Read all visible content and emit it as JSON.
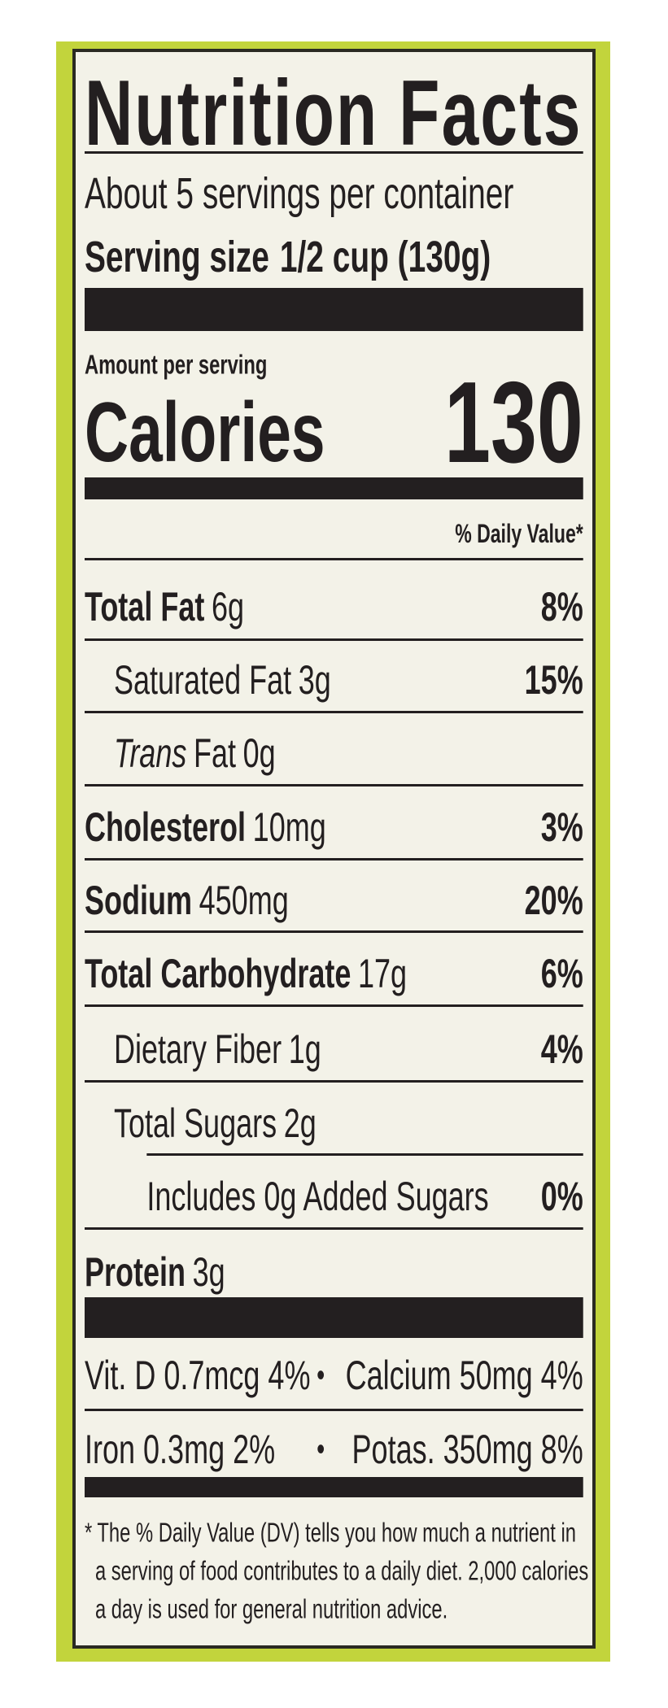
{
  "header": {
    "title": "Nutrition Facts",
    "servings": "About 5 servings per container",
    "serving_size_label": "Serving size",
    "serving_size": "1/2 cup (130g)"
  },
  "calories": {
    "amount_label": "Amount per serving",
    "label": "Calories",
    "value": "130"
  },
  "daily_value_header": "% Daily Value*",
  "nutrients": [
    {
      "name": "Total Fat",
      "amount": "6g",
      "dv": "8%",
      "bold": true,
      "indent": 0
    },
    {
      "name": "Saturated Fat",
      "amount": "3g",
      "dv": "15%",
      "bold": false,
      "indent": 1
    },
    {
      "name_italic": "Trans",
      "name": "Fat",
      "amount": "0g",
      "bold": false,
      "indent": 1
    },
    {
      "name": "Cholesterol",
      "amount": "10mg",
      "dv": "3%",
      "bold": true,
      "indent": 0
    },
    {
      "name": "Sodium",
      "amount": "450mg",
      "dv": "20%",
      "bold": true,
      "indent": 0
    },
    {
      "name": "Total Carbohydrate",
      "amount": "17g",
      "dv": "6%",
      "bold": true,
      "indent": 0
    },
    {
      "name": "Dietary Fiber",
      "amount": "1g",
      "dv": "4%",
      "bold": false,
      "indent": 1
    },
    {
      "name": "Total Sugars",
      "amount": "2g",
      "bold": false,
      "indent": 1
    },
    {
      "name": "Includes 0g Added Sugars",
      "dv": "0%",
      "bold": false,
      "indent": 2
    },
    {
      "name": "Protein",
      "amount": "3g",
      "bold": true,
      "indent": 0
    }
  ],
  "vitamins": [
    {
      "left": "Vit. D 0.7mcg 4%",
      "separator": "•",
      "right": "Calcium 50mg 4%"
    },
    {
      "left": "Iron 0.3mg 2%",
      "separator": "•",
      "right": "Potas. 350mg 8%"
    }
  ],
  "footnote": [
    "* The % Daily Value (DV) tells you how much a nutrient in",
    "a serving of food contributes to a daily diet. 2,000 calories",
    "a day is used for general nutrition advice."
  ]
}
